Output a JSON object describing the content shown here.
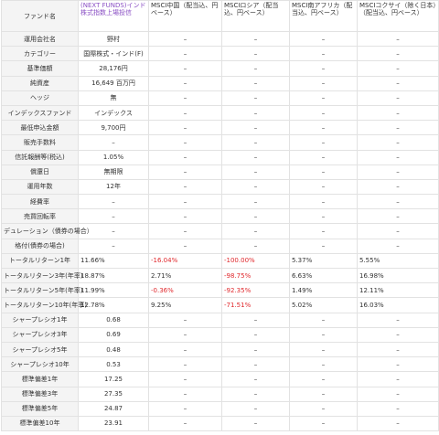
{
  "header": {
    "label": "ファンド名",
    "funds": [
      "(NEXT FUNDS)インド株式指数上場投信",
      "MSCI中国（配当込、円ベース）",
      "MSCIロシア（配当込、円ベース）",
      "MSCI南アフリカ（配当込、円ベース）",
      "MSCIコクサイ（除く日本）（配当込、円ベース）"
    ]
  },
  "rows": [
    {
      "label": "運用会社名",
      "fund": "野村",
      "align": "c",
      "others": [
        "–",
        "–",
        "–",
        "–"
      ]
    },
    {
      "label": "カテゴリー",
      "fund": "国際株式・インド(F)",
      "align": "c",
      "others": [
        "–",
        "–",
        "–",
        "–"
      ]
    },
    {
      "label": "基準価額",
      "fund": "28,176円",
      "align": "c",
      "others": [
        "–",
        "–",
        "–",
        "–"
      ]
    },
    {
      "label": "純資産",
      "fund": "16,649 百万円",
      "align": "c",
      "others": [
        "–",
        "–",
        "–",
        "–"
      ]
    },
    {
      "label": "ヘッジ",
      "fund": "無",
      "align": "c",
      "others": [
        "–",
        "–",
        "–",
        "–"
      ]
    },
    {
      "label": "インデックスファンド",
      "fund": "インデックス",
      "align": "c",
      "others": [
        "–",
        "–",
        "–",
        "–"
      ]
    },
    {
      "label": "最低申込金額",
      "fund": "9,700円",
      "align": "c",
      "others": [
        "–",
        "–",
        "–",
        "–"
      ]
    },
    {
      "label": "販売手数料",
      "fund": "–",
      "align": "c",
      "others": [
        "–",
        "–",
        "–",
        "–"
      ]
    },
    {
      "label": "信託報酬等(税込)",
      "fund": "1.05%",
      "align": "c",
      "others": [
        "–",
        "–",
        "–",
        "–"
      ]
    },
    {
      "label": "償還日",
      "fund": "無期限",
      "align": "c",
      "others": [
        "–",
        "–",
        "–",
        "–"
      ]
    },
    {
      "label": "運用年数",
      "fund": "12年",
      "align": "c",
      "others": [
        "–",
        "–",
        "–",
        "–"
      ]
    },
    {
      "label": "経費率",
      "fund": "–",
      "align": "c",
      "others": [
        "–",
        "–",
        "–",
        "–"
      ]
    },
    {
      "label": "売買回転率",
      "fund": "–",
      "align": "c",
      "others": [
        "–",
        "–",
        "–",
        "–"
      ]
    },
    {
      "label": "デュレーション（債券の場合）",
      "fund": "–",
      "align": "c",
      "others": [
        "–",
        "–",
        "–",
        "–"
      ]
    },
    {
      "label": "格付(債券の場合)",
      "fund": "–",
      "align": "c",
      "others": [
        "–",
        "–",
        "–",
        "–"
      ]
    },
    {
      "label": "トータルリターン1年",
      "fund": "11.66%",
      "align": "l",
      "others": [
        "-16.04%",
        "-100.00%",
        "5.37%",
        "5.55%"
      ],
      "neg": [
        true,
        true,
        false,
        false
      ]
    },
    {
      "label": "トータルリターン3年(年率)",
      "fund": "18.87%",
      "align": "l",
      "others": [
        "2.71%",
        "-98.75%",
        "6.63%",
        "16.98%"
      ],
      "neg": [
        false,
        true,
        false,
        false
      ]
    },
    {
      "label": "トータルリターン5年(年率)",
      "fund": "11.99%",
      "align": "l",
      "others": [
        "-0.36%",
        "-92.35%",
        "1.49%",
        "12.11%"
      ],
      "neg": [
        true,
        true,
        false,
        false
      ]
    },
    {
      "label": "トータルリターン10年(年率)",
      "fund": "12.78%",
      "align": "l",
      "others": [
        "9.25%",
        "-71.51%",
        "5.02%",
        "16.03%"
      ],
      "neg": [
        false,
        true,
        false,
        false
      ]
    },
    {
      "label": "シャープレシオ1年",
      "fund": "0.68",
      "align": "c",
      "others": [
        "–",
        "–",
        "–",
        "–"
      ]
    },
    {
      "label": "シャープレシオ3年",
      "fund": "0.69",
      "align": "c",
      "others": [
        "–",
        "–",
        "–",
        "–"
      ]
    },
    {
      "label": "シャープレシオ5年",
      "fund": "0.48",
      "align": "c",
      "others": [
        "–",
        "–",
        "–",
        "–"
      ]
    },
    {
      "label": "シャープレシオ10年",
      "fund": "0.53",
      "align": "c",
      "others": [
        "–",
        "–",
        "–",
        "–"
      ]
    },
    {
      "label": "標準偏差1年",
      "fund": "17.25",
      "align": "c",
      "others": [
        "–",
        "–",
        "–",
        "–"
      ]
    },
    {
      "label": "標準偏差3年",
      "fund": "27.35",
      "align": "c",
      "others": [
        "–",
        "–",
        "–",
        "–"
      ]
    },
    {
      "label": "標準偏差5年",
      "fund": "24.87",
      "align": "c",
      "others": [
        "–",
        "–",
        "–",
        "–"
      ]
    },
    {
      "label": "標準偏差10年",
      "fund": "23.91",
      "align": "c",
      "others": [
        "–",
        "–",
        "–",
        "–"
      ]
    }
  ]
}
